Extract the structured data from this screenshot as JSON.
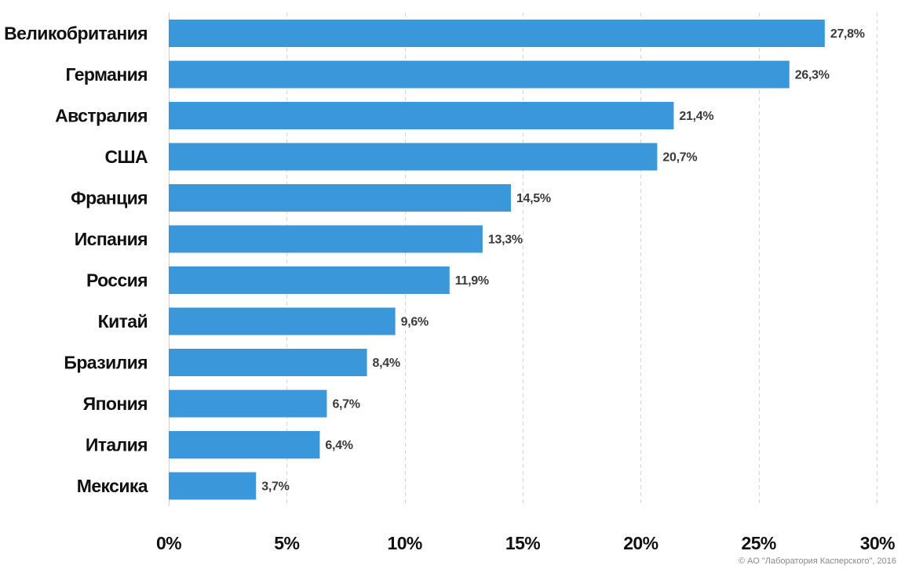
{
  "chart_data": {
    "type": "bar",
    "orientation": "horizontal",
    "categories": [
      "Великобритания",
      "Германия",
      "Австралия",
      "США",
      "Франция",
      "Испания",
      "Россия",
      "Китай",
      "Бразилия",
      "Япония",
      "Италия",
      "Мексика"
    ],
    "values": [
      27.8,
      26.3,
      21.4,
      20.7,
      14.5,
      13.3,
      11.9,
      9.6,
      8.4,
      6.7,
      6.4,
      3.7
    ],
    "value_labels": [
      "27,8%",
      "26,3%",
      "21,4%",
      "20,7%",
      "14,5%",
      "13,3%",
      "11,9%",
      "9,6%",
      "8,4%",
      "6,7%",
      "6,4%",
      "3,7%"
    ],
    "xlim": [
      0,
      30
    ],
    "x_ticks": [
      0,
      5,
      10,
      15,
      20,
      25,
      30
    ],
    "x_tick_labels": [
      "0%",
      "5%",
      "10%",
      "15%",
      "20%",
      "25%",
      "30%"
    ],
    "title": "",
    "xlabel": "",
    "ylabel": "",
    "grid": "vertical dashed",
    "bar_color": "#3a97d9"
  },
  "credit": "© АО \"Лаборатория Касперского\", 2016"
}
